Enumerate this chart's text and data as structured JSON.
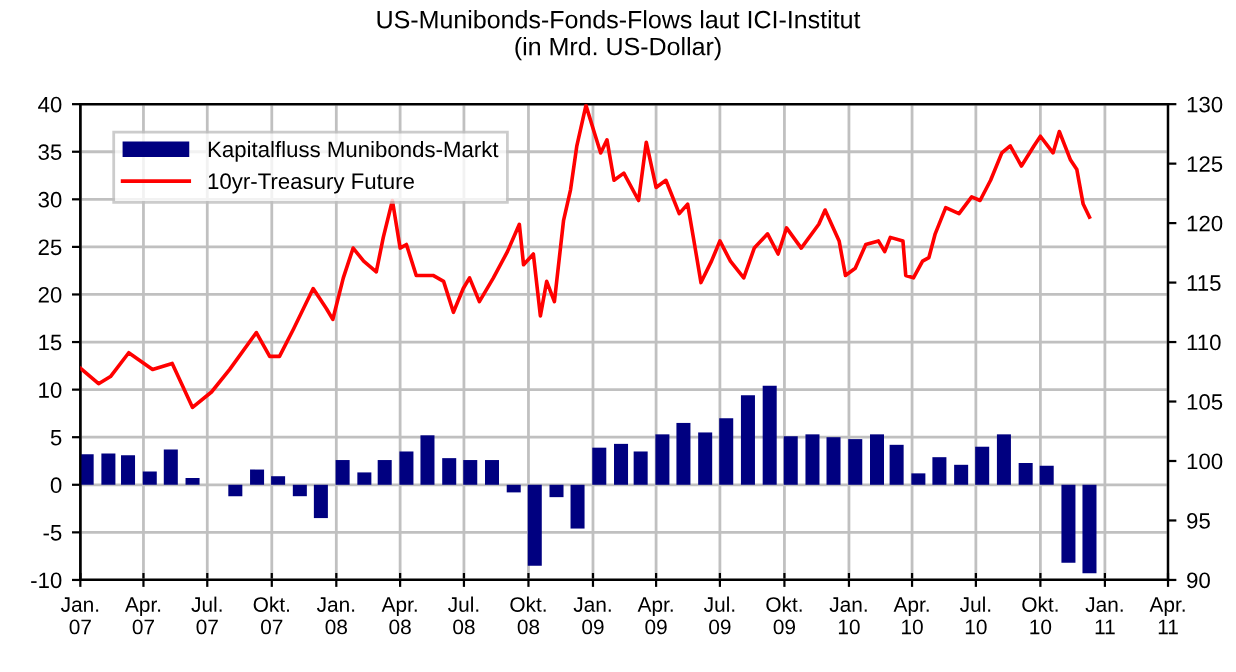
{
  "chart_data": {
    "type": "bar",
    "title": "US-Munibonds-Fonds-Flows laut ICI-Institut\n(in Mrd. US-Dollar)",
    "xlim": [
      "2007-01-01",
      "2011-04-01"
    ],
    "xticks": [
      {
        "value": "2007-01-01",
        "label": "Jan.\n07"
      },
      {
        "value": "2007-04-01",
        "label": "Apr.\n07"
      },
      {
        "value": "2007-07-01",
        "label": "Jul.\n07"
      },
      {
        "value": "2007-10-01",
        "label": "Okt.\n07"
      },
      {
        "value": "2008-01-01",
        "label": "Jan.\n08"
      },
      {
        "value": "2008-04-01",
        "label": "Apr.\n08"
      },
      {
        "value": "2008-07-01",
        "label": "Jul.\n08"
      },
      {
        "value": "2008-10-01",
        "label": "Okt.\n08"
      },
      {
        "value": "2009-01-01",
        "label": "Jan.\n09"
      },
      {
        "value": "2009-04-01",
        "label": "Apr.\n09"
      },
      {
        "value": "2009-07-01",
        "label": "Jul.\n09"
      },
      {
        "value": "2009-10-01",
        "label": "Okt.\n09"
      },
      {
        "value": "2010-01-01",
        "label": "Jan.\n10"
      },
      {
        "value": "2010-04-01",
        "label": "Apr.\n10"
      },
      {
        "value": "2010-07-01",
        "label": "Jul.\n10"
      },
      {
        "value": "2010-10-01",
        "label": "Okt.\n10"
      },
      {
        "value": "2011-01-01",
        "label": "Jan.\n11"
      },
      {
        "value": "2011-04-01",
        "label": "Apr.\n11"
      }
    ],
    "ylim": [
      -10,
      40
    ],
    "yticks": [
      -10,
      -5,
      0,
      5,
      10,
      15,
      20,
      25,
      30,
      35,
      40
    ],
    "y2lim": [
      90,
      130
    ],
    "y2ticks": [
      90,
      95,
      100,
      105,
      110,
      115,
      120,
      125,
      130
    ],
    "grid": true,
    "legend": "top left",
    "series": [
      {
        "name": "Kapitalfluss Munibonds-Markt",
        "color": "#000080",
        "x": [
          "2007-01-10",
          "2007-02-10",
          "2007-03-10",
          "2007-04-10",
          "2007-05-10",
          "2007-06-10",
          "2007-07-10",
          "2007-08-10",
          "2007-09-10",
          "2007-10-10",
          "2007-11-10",
          "2007-12-10",
          "2008-01-10",
          "2008-02-10",
          "2008-03-10",
          "2008-04-10",
          "2008-05-10",
          "2008-06-10",
          "2008-07-10",
          "2008-08-10",
          "2008-09-10",
          "2008-10-10",
          "2008-11-10",
          "2008-12-10",
          "2009-01-10",
          "2009-02-10",
          "2009-03-10",
          "2009-04-10",
          "2009-05-10",
          "2009-06-10",
          "2009-07-10",
          "2009-08-10",
          "2009-09-10",
          "2009-10-10",
          "2009-11-10",
          "2009-12-10",
          "2010-01-10",
          "2010-02-10",
          "2010-03-10",
          "2010-04-10",
          "2010-05-10",
          "2010-06-10",
          "2010-07-10",
          "2010-08-10",
          "2010-09-10",
          "2010-10-10",
          "2010-11-10",
          "2010-12-10"
        ],
        "values": [
          3.2,
          3.3,
          3.1,
          1.4,
          3.7,
          0.7,
          0,
          -1.2,
          1.6,
          0.9,
          -1.2,
          -3.5,
          2.6,
          1.3,
          2.6,
          3.5,
          5.2,
          2.8,
          2.6,
          2.6,
          -0.8,
          -8.5,
          -1.3,
          -4.6,
          3.9,
          4.3,
          3.5,
          5.3,
          6.5,
          5.5,
          7.0,
          9.4,
          10.4,
          5.1,
          5.3,
          5.0,
          4.8,
          5.3,
          4.2,
          1.2,
          2.9,
          2.1,
          4.0,
          5.3,
          2.3,
          2.0,
          -8.2,
          -9.3
        ]
      },
      {
        "name": "10yr-Treasury Future",
        "type": "line",
        "axis": "y2",
        "color": "#ff0000",
        "line_style": "solid",
        "x": [
          "2007-01-01",
          "2007-01-27",
          "2007-02-13",
          "2007-03-11",
          "2007-04-14",
          "2007-05-12",
          "2007-06-10",
          "2007-07-07",
          "2007-08-02",
          "2007-09-09",
          "2007-09-28",
          "2007-10-12",
          "2007-11-01",
          "2007-11-29",
          "2007-12-18",
          "2007-12-27",
          "2008-01-11",
          "2008-01-25",
          "2008-02-09",
          "2008-02-27",
          "2008-03-08",
          "2008-03-21",
          "2008-04-01",
          "2008-04-10",
          "2008-04-24",
          "2008-05-18",
          "2008-06-02",
          "2008-06-16",
          "2008-06-30",
          "2008-07-09",
          "2008-07-23",
          "2008-08-12",
          "2008-09-01",
          "2008-09-18",
          "2008-09-24",
          "2008-10-08",
          "2008-10-18",
          "2008-10-27",
          "2008-11-07",
          "2008-11-20",
          "2008-11-30",
          "2008-12-09",
          "2008-12-22",
          "2009-01-03",
          "2009-01-12",
          "2009-01-21",
          "2009-01-31",
          "2009-02-14",
          "2009-03-07",
          "2009-03-18",
          "2009-04-01",
          "2009-04-15",
          "2009-05-04",
          "2009-05-16",
          "2009-05-25",
          "2009-06-04",
          "2009-06-19",
          "2009-07-01",
          "2009-07-16",
          "2009-08-04",
          "2009-08-19",
          "2009-09-07",
          "2009-09-22",
          "2009-10-04",
          "2009-10-25",
          "2009-11-19",
          "2009-11-28",
          "2009-12-18",
          "2009-12-27",
          "2010-01-10",
          "2010-01-25",
          "2010-02-12",
          "2010-02-21",
          "2010-03-01",
          "2010-03-19",
          "2010-03-23",
          "2010-04-03",
          "2010-04-16",
          "2010-04-25",
          "2010-05-04",
          "2010-05-19",
          "2010-06-07",
          "2010-06-25",
          "2010-07-07",
          "2010-07-22",
          "2010-08-07",
          "2010-08-19",
          "2010-09-04",
          "2010-09-22",
          "2010-10-01",
          "2010-10-19",
          "2010-10-28",
          "2010-11-13",
          "2010-11-22",
          "2010-12-01",
          "2010-12-10"
        ],
        "values": [
          107.8,
          106.5,
          107.1,
          109.1,
          107.7,
          108.2,
          104.5,
          105.8,
          107.7,
          110.8,
          108.8,
          108.8,
          111.1,
          114.5,
          112.8,
          111.9,
          115.4,
          117.9,
          116.8,
          115.9,
          118.8,
          121.9,
          117.9,
          118.2,
          115.6,
          115.6,
          115.1,
          112.5,
          114.5,
          115.4,
          113.4,
          115.4,
          117.6,
          119.9,
          116.5,
          117.4,
          112.2,
          115.1,
          113.4,
          120.2,
          122.8,
          126.5,
          129.9,
          127.6,
          125.9,
          127.0,
          123.6,
          124.2,
          121.9,
          126.8,
          123.0,
          123.6,
          120.8,
          121.6,
          118.5,
          115.0,
          116.8,
          118.5,
          116.8,
          115.4,
          117.9,
          119.1,
          117.4,
          119.6,
          117.9,
          119.9,
          121.1,
          118.5,
          115.6,
          116.2,
          118.2,
          118.5,
          117.6,
          118.8,
          118.5,
          115.6,
          115.4,
          116.8,
          117.1,
          119.1,
          121.3,
          120.8,
          122.2,
          121.9,
          123.6,
          125.9,
          126.5,
          124.8,
          126.5,
          127.3,
          125.9,
          127.7,
          125.3,
          124.5,
          121.6,
          120.5
        ]
      }
    ]
  }
}
